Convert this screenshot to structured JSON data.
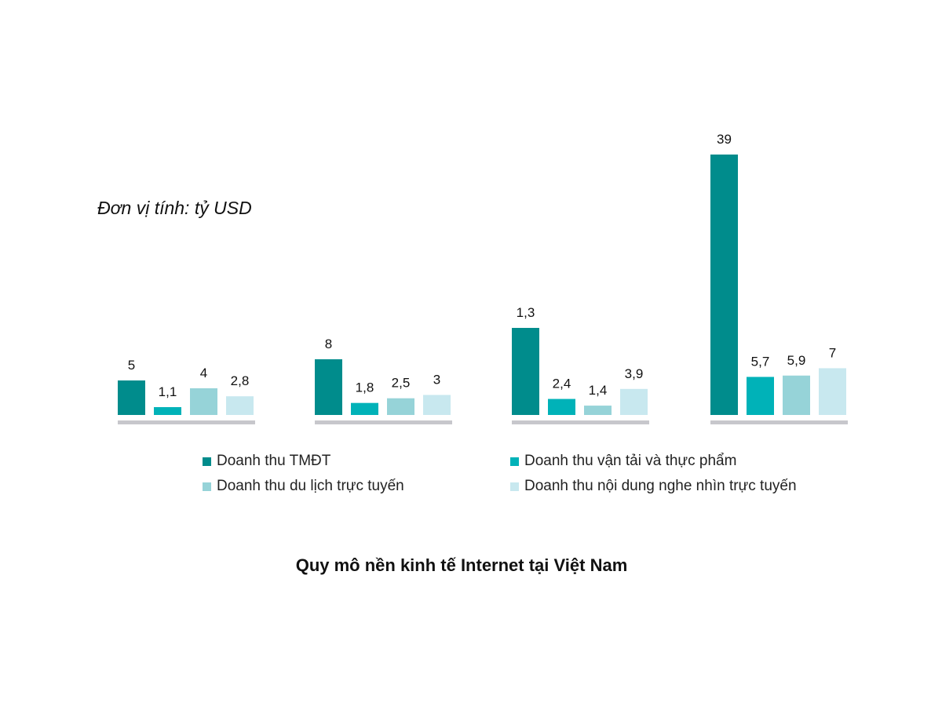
{
  "chart_data": {
    "type": "bar",
    "title": "Quy mô nền kinh tế Internet tại Việt Nam",
    "unit_note": "Đơn vị tính: tỷ USD",
    "categories": [
      "",
      "",
      "",
      ""
    ],
    "series": [
      {
        "name": "Doanh thu TMĐT",
        "color": "#008c8c",
        "values": [
          5,
          8,
          1.3,
          39
        ],
        "labels": [
          "5",
          "8",
          "1,3",
          "39"
        ]
      },
      {
        "name": "Doanh thu vận tải và thực phẩm",
        "color": "#00b2b8",
        "values": [
          1.1,
          1.8,
          2.4,
          5.7
        ],
        "labels": [
          "1,1",
          "1,8",
          "2,4",
          "5,7"
        ]
      },
      {
        "name": "Doanh thu du lịch trực tuyến",
        "color": "#96d3d8",
        "values": [
          4,
          2.5,
          1.4,
          5.9
        ],
        "labels": [
          "4",
          "2,5",
          "1,4",
          "5,9"
        ]
      },
      {
        "name": "Doanh thu nội dung nghe nhìn trực tuyến",
        "color": "#c8e8ef",
        "values": [
          2.8,
          3,
          3.9,
          7
        ],
        "labels": [
          "2,8",
          "3",
          "3,9",
          "7"
        ]
      }
    ],
    "baseline_color": "#c7c7cc",
    "legend_position": "bottom",
    "grid": false
  }
}
